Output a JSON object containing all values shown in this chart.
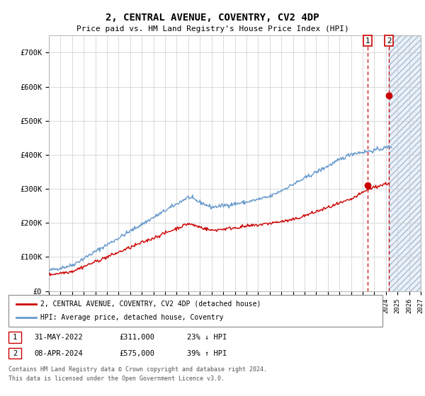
{
  "title": "2, CENTRAL AVENUE, COVENTRY, CV2 4DP",
  "subtitle": "Price paid vs. HM Land Registry's House Price Index (HPI)",
  "ylabel_ticks": [
    "£0",
    "£100K",
    "£200K",
    "£300K",
    "£400K",
    "£500K",
    "£600K",
    "£700K"
  ],
  "ylim": [
    0,
    750000
  ],
  "xlim_start": 1995,
  "xlim_end": 2027,
  "legend_line1": "2, CENTRAL AVENUE, COVENTRY, CV2 4DP (detached house)",
  "legend_line2": "HPI: Average price, detached house, Coventry",
  "transaction1_date": "31-MAY-2022",
  "transaction1_price": "£311,000",
  "transaction1_hpi": "23% ↓ HPI",
  "transaction2_date": "08-APR-2024",
  "transaction2_price": "£575,000",
  "transaction2_hpi": "39% ↑ HPI",
  "footer": "Contains HM Land Registry data © Crown copyright and database right 2024.\nThis data is licensed under the Open Government Licence v3.0.",
  "hpi_color": "#6699cc",
  "price_color": "#cc0000",
  "transaction1_x": 2022.42,
  "transaction2_x": 2024.27,
  "marker1_y": 311000,
  "marker2_y": 575000,
  "background_color": "#ffffff",
  "grid_color": "#cccccc",
  "shade_start": 2024.27,
  "shade_end": 2027
}
